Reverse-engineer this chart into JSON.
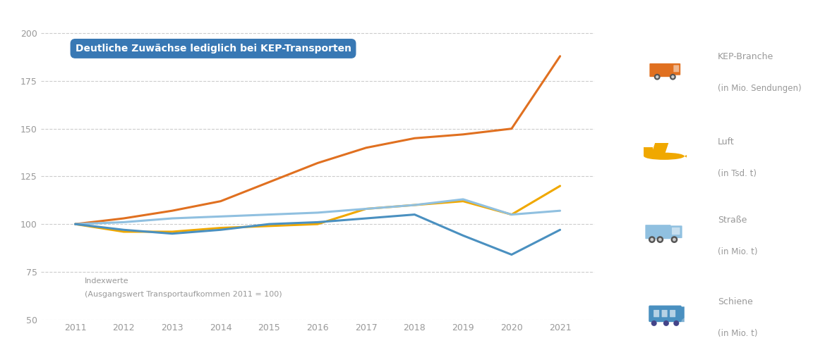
{
  "years": [
    2011,
    2012,
    2013,
    2014,
    2015,
    2016,
    2017,
    2018,
    2019,
    2020,
    2021
  ],
  "kep": [
    100,
    103,
    107,
    112,
    122,
    132,
    140,
    145,
    147,
    150,
    188
  ],
  "luft": [
    100,
    96,
    96,
    98,
    99,
    100,
    108,
    110,
    112,
    105,
    120
  ],
  "strasse": [
    100,
    101,
    103,
    104,
    105,
    106,
    108,
    110,
    113,
    105,
    107
  ],
  "schiene": [
    100,
    97,
    95,
    97,
    100,
    101,
    103,
    105,
    94,
    84,
    97
  ],
  "kep_color": "#e07020",
  "luft_color": "#f0a800",
  "strasse_color": "#90c0e0",
  "schiene_color": "#4a90c0",
  "ylim": [
    50,
    210
  ],
  "yticks": [
    50,
    75,
    100,
    125,
    150,
    175,
    200
  ],
  "bg_color": "#ffffff",
  "grid_color": "#cccccc",
  "annotation_text": "Deutliche Zuwächse lediglich bei KEP-Transporten",
  "annotation_box_color": "#3878b4",
  "annotation_text_color": "#ffffff",
  "ylabel_line1": "Indexwerte",
  "ylabel_line2": "(Ausgangswert Transportaufkommen 2011 = 100)",
  "legend_names": [
    "KEP-Branche",
    "Luft",
    "Straße",
    "Schiene"
  ],
  "legend_units": [
    "(in Mio. Sendungen)",
    "(in Tsd. t)",
    "(in Mio. t)",
    "(in Mio. t)"
  ],
  "line_width": 2.2,
  "tick_color": "#999999",
  "label_color": "#999999"
}
